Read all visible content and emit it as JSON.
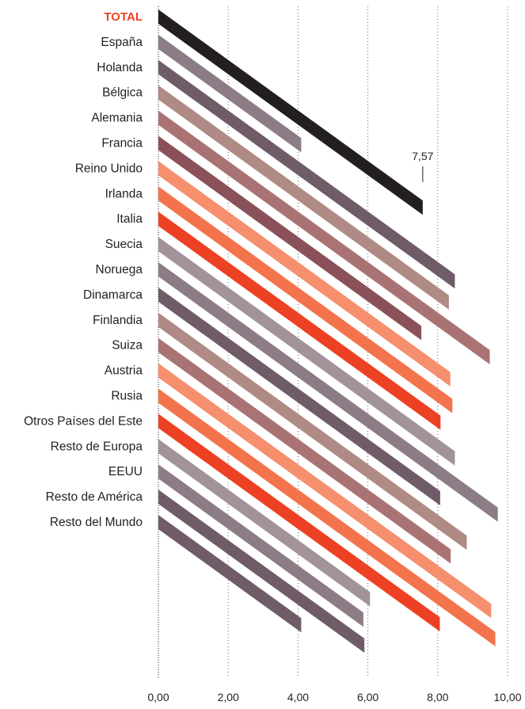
{
  "chart_data": {
    "type": "bar",
    "orientation": "horizontal",
    "highlight_label": "7,57",
    "categories": [
      "TOTAL",
      "España",
      "Holanda",
      "Bélgica",
      "Alemania",
      "Francia",
      "Reino Unido",
      "Irlanda",
      "Italia",
      "Suecia",
      "Noruega",
      "Dinamarca",
      "Finlandia",
      "Suiza",
      "Austria",
      "Rusia",
      "Otros Países del Este",
      "Resto de Europa",
      "EEUU",
      "Resto de América",
      "Resto del Mundo"
    ],
    "values": [
      7.57,
      4.09,
      8.49,
      8.32,
      9.49,
      7.53,
      8.36,
      8.42,
      8.08,
      8.49,
      9.72,
      8.07,
      8.83,
      8.37,
      9.53,
      9.65,
      8.06,
      6.06,
      5.87,
      5.9,
      4.09
    ],
    "bar_colors": [
      "#231f20",
      "#8c7c85",
      "#6f5c68",
      "#b08a84",
      "#a97374",
      "#8a515b",
      "#f58f6e",
      "#f3744c",
      "#ed4123",
      "#a2929a",
      "#8c7c85",
      "#6f5c68",
      "#b08a84",
      "#a97374",
      "#f58f6e",
      "#f3744c",
      "#ed4123",
      "#a2929a",
      "#8c7c85",
      "#6f5c68",
      "#6f5c68"
    ],
    "xticks": [
      "0,00",
      "2,00",
      "4,00",
      "6,00",
      "8,00",
      "10,00"
    ],
    "xlim": [
      0,
      10
    ],
    "grid": true,
    "colors": {
      "highlight_text": "#ed4123",
      "text": "#231f20",
      "grid": "#555555"
    }
  }
}
